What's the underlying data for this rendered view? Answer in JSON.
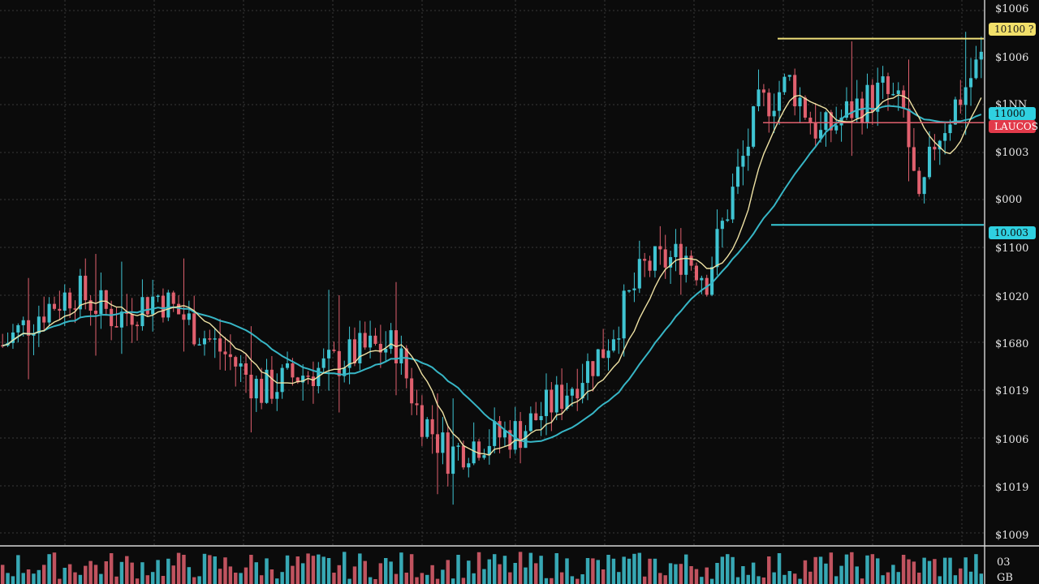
{
  "chart_data": {
    "type": "candlestick",
    "title": "",
    "xlabel": "",
    "ylabel": "",
    "ylim": [
      0,
      12
    ],
    "grid": true,
    "legend": "none",
    "colors": {
      "background": "#0b0b0b",
      "grid": "#3a3a3a",
      "up": "#3fc4d2",
      "down": "#e0606e",
      "ma_fast": "#efe2a4",
      "ma_slow": "#37b6c6",
      "level_resistance": "#f0e07a",
      "level_mid": "#e0606e",
      "level_support": "#37c9d6",
      "tag_yellow": "#f2e06a",
      "tag_cyan": "#2fd0e0",
      "tag_red": "#e23a4a"
    },
    "price_axis": {
      "ticks": [
        {
          "v": 11.8,
          "label": "$1006"
        },
        {
          "v": 10.8,
          "label": "$1006"
        },
        {
          "v": 9.8,
          "label": "$1NN"
        },
        {
          "v": 8.8,
          "label": "$1003"
        },
        {
          "v": 7.8,
          "label": "$000"
        },
        {
          "v": 6.8,
          "label": "$1100"
        },
        {
          "v": 5.8,
          "label": "$1020"
        },
        {
          "v": 4.8,
          "label": "$1680"
        },
        {
          "v": 3.8,
          "label": "$1019"
        },
        {
          "v": 2.8,
          "label": "$1006"
        },
        {
          "v": 1.8,
          "label": "$1019"
        },
        {
          "v": 0.8,
          "label": "$1009"
        }
      ]
    },
    "levels": [
      {
        "name": "resistance",
        "value": 11.15,
        "label": "10100 ?",
        "color": "#f2e06a"
      },
      {
        "name": "mid",
        "value": 9.3,
        "label": "LAUCOS",
        "color": "#e23a4a"
      },
      {
        "name": "mid-tag",
        "value": 9.55,
        "label": "11000",
        "color": "#2fd0e0"
      },
      {
        "name": "support",
        "value": 7.05,
        "label": "10.003",
        "color": "#2fd0e0"
      }
    ],
    "volume_axis": {
      "labels": [
        "03",
        "GB"
      ]
    },
    "candles": [],
    "ma_fast": [],
    "ma_slow": [],
    "volume": []
  }
}
